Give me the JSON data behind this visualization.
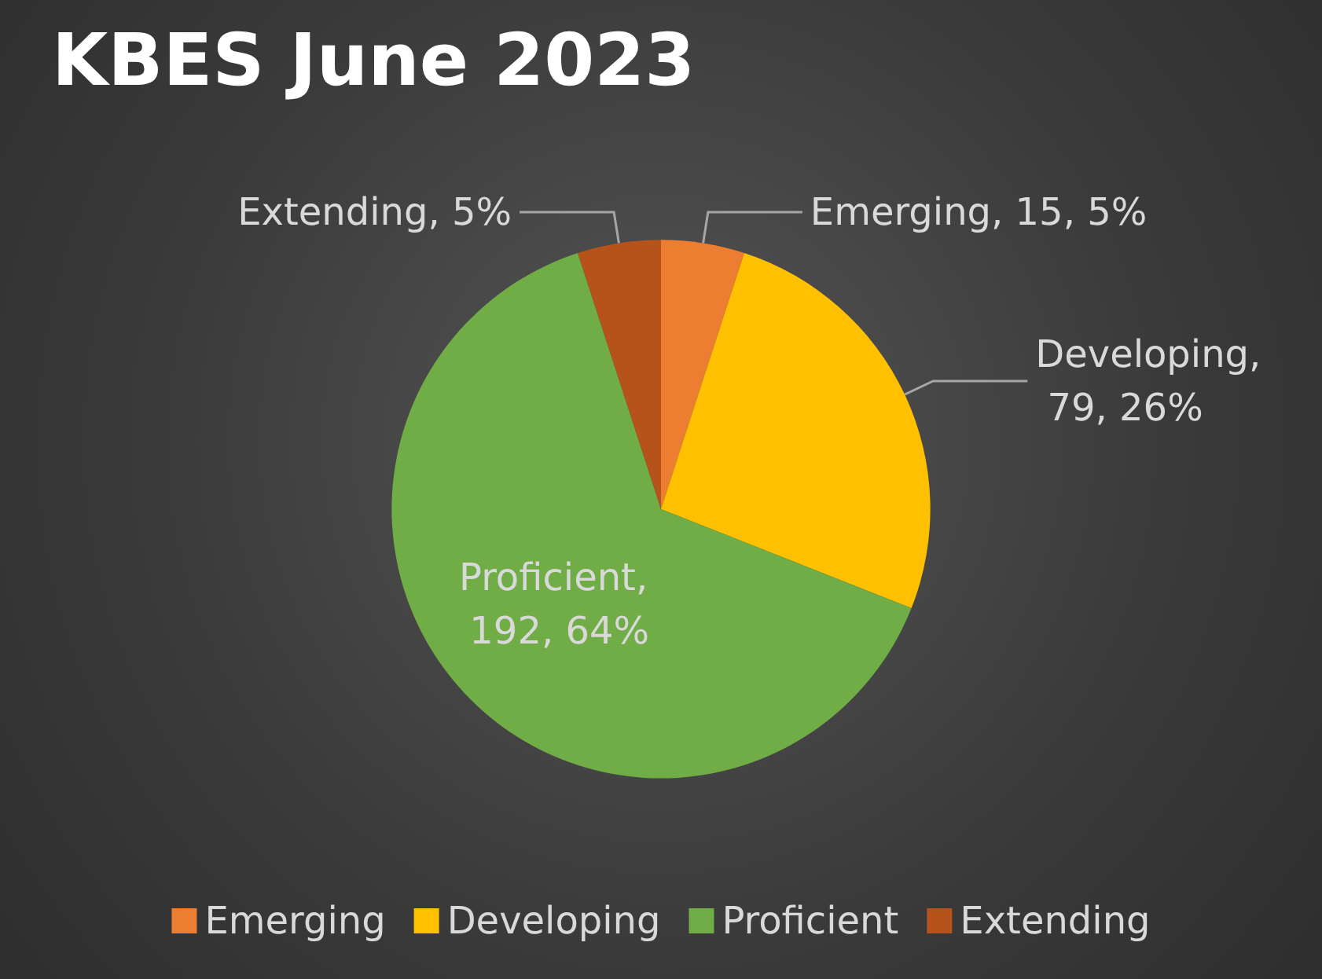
{
  "chart_data": {
    "type": "pie",
    "title": "KBES June 2023",
    "categories": [
      "Emerging",
      "Developing",
      "Proficient",
      "Extending"
    ],
    "values": [
      5,
      26,
      64,
      5
    ],
    "colors": [
      "#ed7d31",
      "#ffc000",
      "#70ad47",
      "#b5531a"
    ],
    "value_labels": [
      "Emerging, 15, 5%",
      "Developing, 79, 26%",
      "Proficient, 192, 64%",
      "Extending, 5%"
    ],
    "legend": "bottom"
  }
}
